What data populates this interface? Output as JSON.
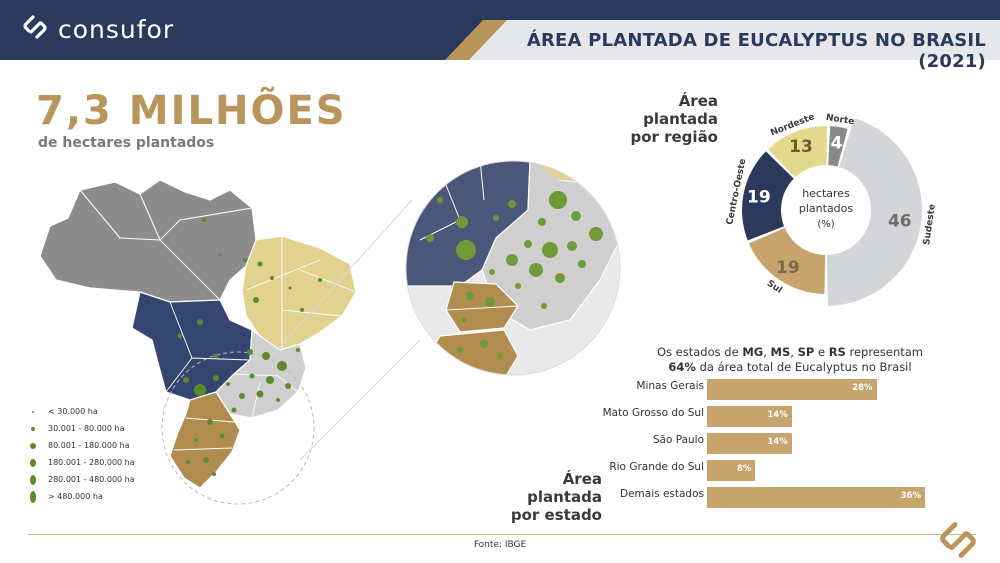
{
  "header": {
    "brand": "consufor",
    "title": "ÁREA PLANTADA DE EUCALYPTUS NO BRASIL (2021)",
    "colors": {
      "navy": "#2b3a5c",
      "gold": "#b8955a",
      "strip": "#e6e7ea"
    }
  },
  "summary": {
    "big_number": "7,3 MILHÕES",
    "subtitle": "de hectares plantados"
  },
  "legend": {
    "items": [
      {
        "label": "< 30.000 ha",
        "size": 1
      },
      {
        "label": "30.001 - 80.000 ha",
        "size": 2
      },
      {
        "label": "80.001 - 180.000 ha",
        "size": 3
      },
      {
        "label": "180.001 - 280.000 ha",
        "size": 4
      },
      {
        "label": "280.001 - 480.000 ha",
        "size": 5
      },
      {
        "label": "> 480.000 ha",
        "size": 6
      }
    ],
    "dot_color": "#5d8a2a"
  },
  "map": {
    "region_colors": {
      "Norte": "#8c8c8c",
      "Nordeste": "#e2d28f",
      "Centro-Oeste": "#34466f",
      "Sudeste": "#cfcfcf",
      "Sul": "#b08d4f"
    }
  },
  "donut": {
    "title_line1": "Área plantada",
    "title_line2": "por região",
    "center_line1": "hectares",
    "center_line2": "plantados",
    "center_line3": "(%)"
  },
  "bar_section": {
    "caption_prefix": "Os estados de ",
    "caption_mg": "MG",
    "caption_sep1": ", ",
    "caption_ms": "MS",
    "caption_sep2": ", ",
    "caption_sp": "SP",
    "caption_and": " e ",
    "caption_rs": "RS",
    "caption_suffix": " representam",
    "caption_pct": "64%",
    "caption_line2": " da área total de Eucalyptus no Brasil",
    "title_line1": "Área plantada",
    "title_line2": "por estado"
  },
  "footer": {
    "source": "Fonte: IBGE"
  },
  "chart_data": [
    {
      "type": "pie",
      "title": "Área plantada por região",
      "unit": "%",
      "series": [
        {
          "name": "Sudeste",
          "value": 46,
          "color": "#d4d5d8",
          "label_color": "#6d6d6d"
        },
        {
          "name": "Sul",
          "value": 19,
          "color": "#c7a46c",
          "label_color": "#7a6a4a"
        },
        {
          "name": "Centro-Oeste",
          "value": 19,
          "color": "#2b3a5c",
          "label_color": "#ffffff"
        },
        {
          "name": "Nordeste",
          "value": 13,
          "color": "#e3d98c",
          "label_color": "#6b5d2a"
        },
        {
          "name": "Norte",
          "value": 4,
          "color": "#8a8a8a",
          "label_color": "#ffffff"
        }
      ]
    },
    {
      "type": "bar",
      "title": "Área plantada por estado",
      "categories": [
        "Minas Gerais",
        "Mato Grosso do Sul",
        "São Paulo",
        "Rio Grande do Sul",
        "Demais estados"
      ],
      "values": [
        28,
        14,
        14,
        8,
        36
      ],
      "value_labels": [
        "28%",
        "14%",
        "14%",
        "8%",
        "36%"
      ],
      "unit": "%",
      "bar_color": "#c7a46c",
      "xlim": [
        0,
        36
      ]
    }
  ]
}
